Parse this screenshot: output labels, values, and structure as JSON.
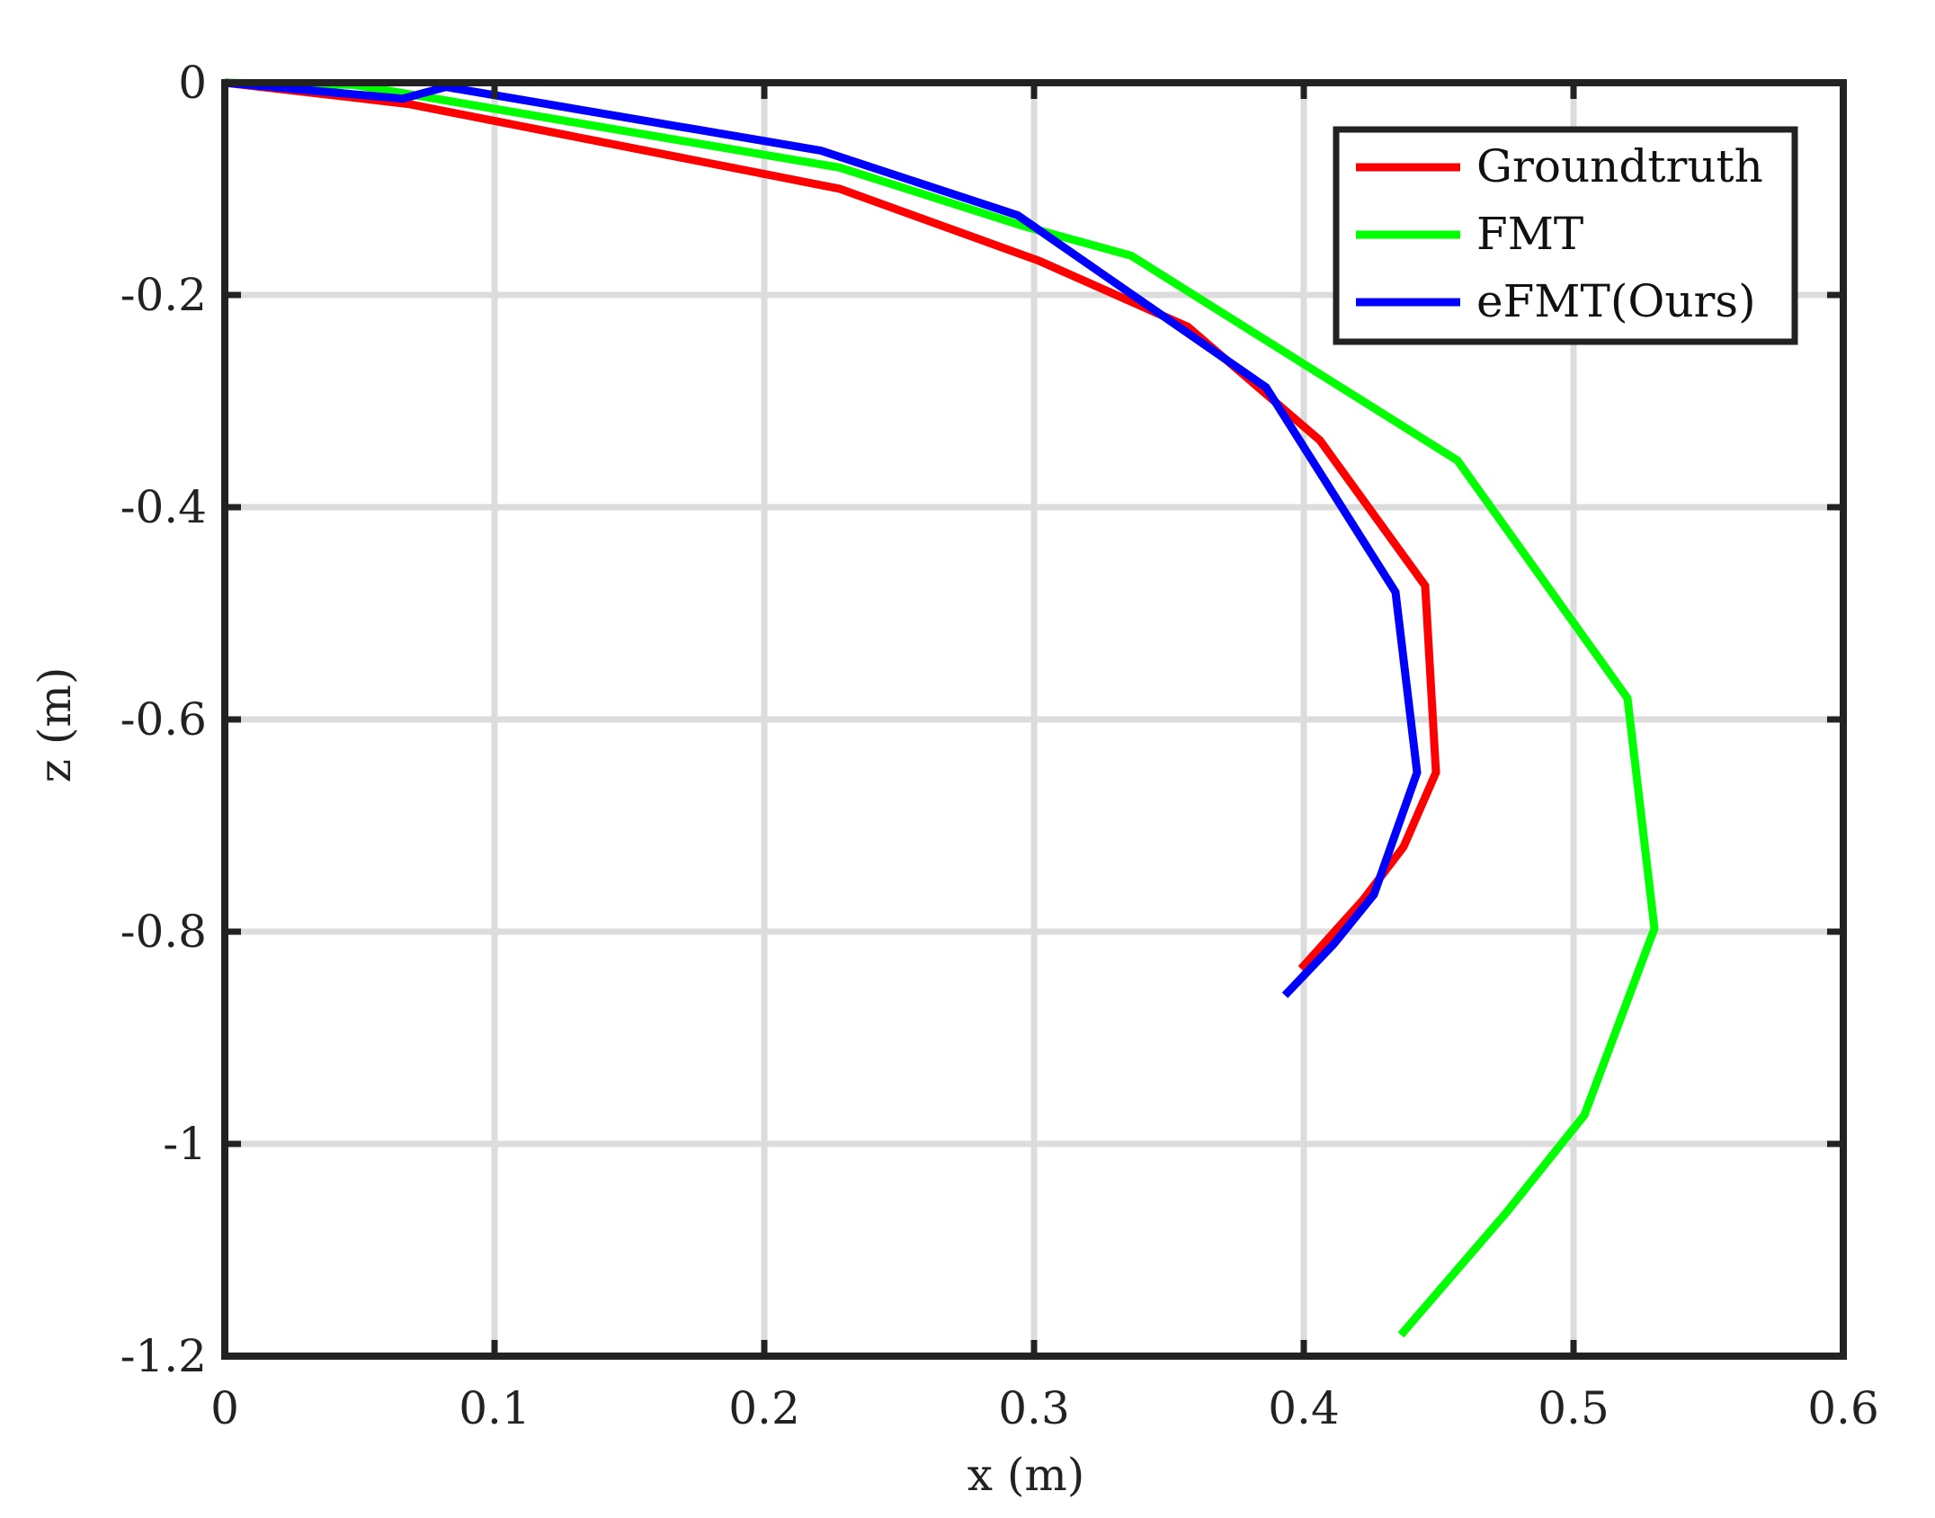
{
  "chart_data": {
    "type": "line",
    "title": "",
    "xlabel": "x (m)",
    "ylabel": "z (m)",
    "xlim": [
      0,
      0.6
    ],
    "ylim": [
      -1.2,
      0
    ],
    "grid": true,
    "legend_position": "top-right",
    "x_ticks": [
      {
        "value": 0,
        "label": "0"
      },
      {
        "value": 0.1,
        "label": "0.1"
      },
      {
        "value": 0.2,
        "label": "0.2"
      },
      {
        "value": 0.3,
        "label": "0.3"
      },
      {
        "value": 0.4,
        "label": "0.4"
      },
      {
        "value": 0.5,
        "label": "0.5"
      },
      {
        "value": 0.6,
        "label": "0.6"
      }
    ],
    "y_ticks": [
      {
        "value": 0,
        "label": "0"
      },
      {
        "value": -0.2,
        "label": "-0.2"
      },
      {
        "value": -0.4,
        "label": "-0.4"
      },
      {
        "value": -0.6,
        "label": "-0.6"
      },
      {
        "value": -0.8,
        "label": "-0.8"
      },
      {
        "value": -1.0,
        "label": "-1"
      },
      {
        "value": -1.2,
        "label": "-1.2"
      }
    ],
    "series": [
      {
        "name": "Groundtruth",
        "color": "#ff0000",
        "points": [
          [
            0,
            0
          ],
          [
            0.068,
            -0.02
          ],
          [
            0.228,
            -0.1
          ],
          [
            0.302,
            -0.168
          ],
          [
            0.357,
            -0.23
          ],
          [
            0.406,
            -0.337
          ],
          [
            0.445,
            -0.474
          ],
          [
            0.449,
            -0.65
          ],
          [
            0.437,
            -0.72
          ],
          [
            0.422,
            -0.77
          ],
          [
            0.399,
            -0.835
          ]
        ]
      },
      {
        "name": "FMT",
        "color": "#00ff00",
        "points": [
          [
            0,
            0
          ],
          [
            0.048,
            -0.002
          ],
          [
            0.228,
            -0.08
          ],
          [
            0.296,
            -0.135
          ],
          [
            0.336,
            -0.163
          ],
          [
            0.457,
            -0.356
          ],
          [
            0.52,
            -0.58
          ],
          [
            0.53,
            -0.797
          ],
          [
            0.504,
            -0.973
          ],
          [
            0.475,
            -1.065
          ],
          [
            0.436,
            -1.18
          ]
        ]
      },
      {
        "name": "eFMT(Ours)",
        "color": "#0000ff",
        "points": [
          [
            0,
            0
          ],
          [
            0.066,
            -0.015
          ],
          [
            0.082,
            -0.004
          ],
          [
            0.221,
            -0.064
          ],
          [
            0.294,
            -0.125
          ],
          [
            0.386,
            -0.287
          ],
          [
            0.434,
            -0.48
          ],
          [
            0.442,
            -0.65
          ],
          [
            0.426,
            -0.765
          ],
          [
            0.411,
            -0.812
          ],
          [
            0.393,
            -0.86
          ]
        ]
      }
    ]
  }
}
